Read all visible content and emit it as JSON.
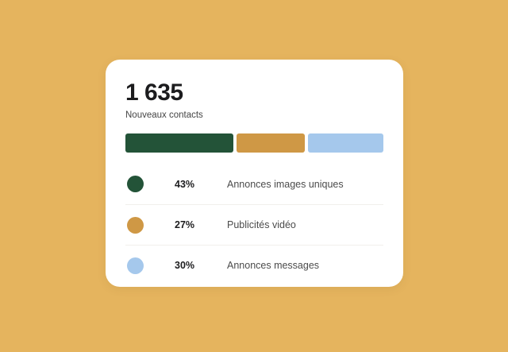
{
  "colors": {
    "page_background": "#e5b45e",
    "card_background": "#ffffff",
    "divider": "#f1efec",
    "title_text": "#1c1c1e",
    "label_text": "#4b4b4b"
  },
  "chart_data": {
    "type": "bar",
    "variant": "horizontal-stacked-percentage",
    "title": "1 635",
    "subtitle": "Nouveaux contacts",
    "total_new_contacts": 1635,
    "unit": "%",
    "xlim": [
      0,
      100
    ],
    "grid": false,
    "legend_position": "below",
    "segments": [
      {
        "label": "Annonces images uniques",
        "value": 43,
        "percent_label": "43%",
        "color": "#235338"
      },
      {
        "label": "Publicités vidéo",
        "value": 27,
        "percent_label": "27%",
        "color": "#cf9845"
      },
      {
        "label": "Annonces messages",
        "value": 30,
        "percent_label": "30%",
        "color": "#a5c8ec"
      }
    ]
  }
}
